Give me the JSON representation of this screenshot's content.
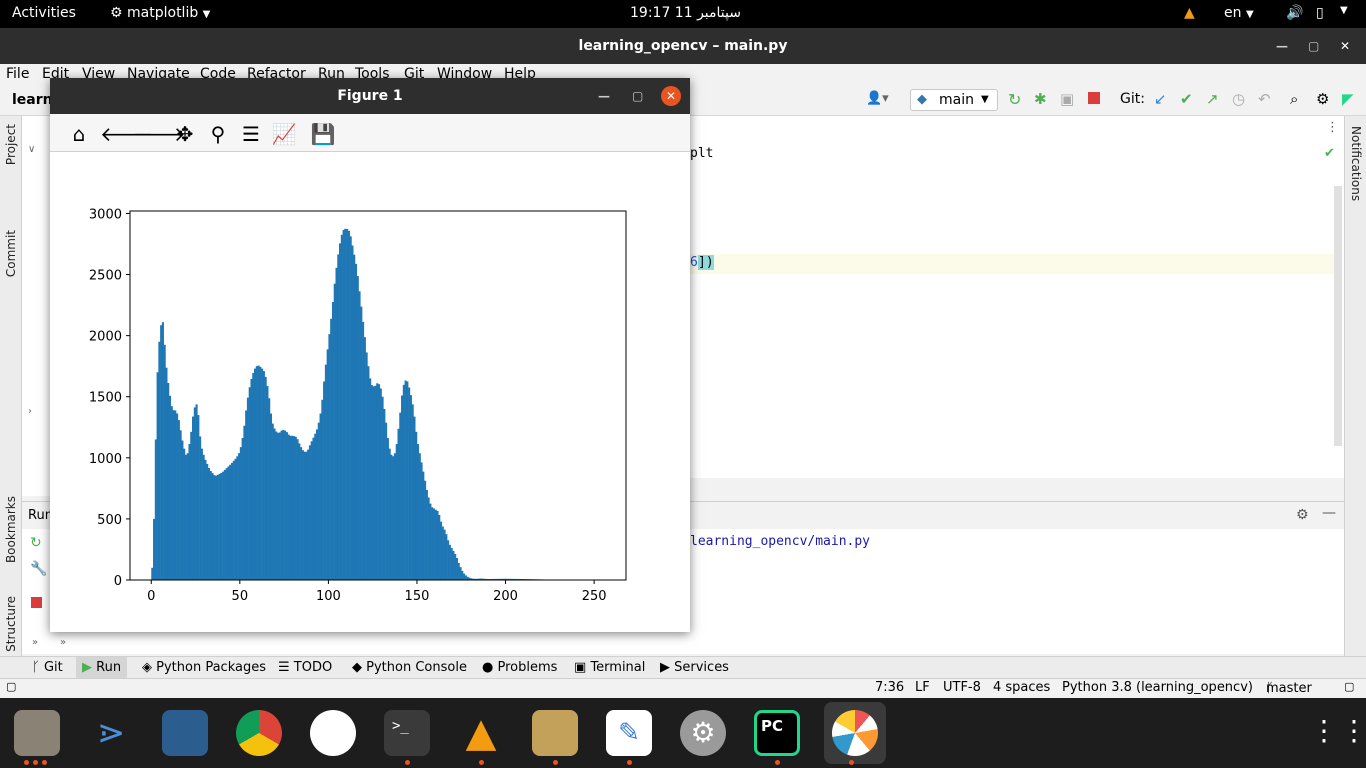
{
  "topbar": {
    "activities": "Activities",
    "app_name": "matplotlib",
    "clock": "19:17  11 سپتامبر",
    "lang": "en"
  },
  "ide": {
    "window_title": "learning_opencv – main.py",
    "menu": [
      "File",
      "Edit",
      "View",
      "Navigate",
      "Code",
      "Refactor",
      "Run",
      "Tools",
      "Git",
      "Window",
      "Help"
    ],
    "project_crumb": "learn",
    "run_config": "main",
    "git_label": "Git:",
    "editor_line1": "plt",
    "editor_line2_pre": "6",
    "editor_line2_post": "])",
    "run_label": "Run",
    "run_path": "learning_opencv/main.py",
    "left_tabs": [
      "Project",
      "Commit",
      "Bookmarks",
      "Structure"
    ],
    "right_tab": "Notifications",
    "tool_windows": [
      "Git",
      "Run",
      "Python Packages",
      "TODO",
      "Python Console",
      "Problems",
      "Terminal",
      "Services"
    ],
    "status": {
      "position": "7:36",
      "line_sep": "LF",
      "encoding": "UTF-8",
      "indent": "4 spaces",
      "interpreter": "Python 3.8 (learning_opencv)",
      "branch": "master"
    }
  },
  "figure": {
    "window_title": "Figure 1",
    "toolbar_icons": [
      "home-icon",
      "back-icon",
      "forward-icon",
      "pan-icon",
      "zoom-icon",
      "configure-icon",
      "edit-axes-icon",
      "save-icon"
    ]
  },
  "chart_data": {
    "type": "bar",
    "title": "",
    "xlabel": "",
    "ylabel": "",
    "xlim": [
      -12,
      268
    ],
    "ylim": [
      0,
      3020
    ],
    "xticks": [
      0,
      50,
      100,
      150,
      200,
      250
    ],
    "yticks": [
      0,
      500,
      1000,
      1500,
      2000,
      2500,
      3000
    ],
    "color": "#1f77b4",
    "keyframes_x": [
      0,
      1,
      2,
      3,
      4,
      5,
      6,
      7,
      8,
      10,
      12,
      13,
      15,
      18,
      20,
      22,
      24,
      26,
      27,
      28,
      30,
      33,
      36,
      40,
      45,
      48,
      50,
      52,
      54,
      56,
      58,
      60,
      62,
      64,
      66,
      68,
      70,
      72,
      74,
      76,
      78,
      80,
      82,
      84,
      86,
      88,
      90,
      92,
      94,
      96,
      98,
      100,
      102,
      104,
      106,
      108,
      110,
      112,
      114,
      116,
      118,
      120,
      122,
      124,
      126,
      128,
      130,
      132,
      134,
      136,
      138,
      140,
      142,
      144,
      146,
      148,
      150,
      152,
      154,
      156,
      158,
      160,
      162,
      164,
      166,
      168,
      170,
      172,
      174,
      176,
      178,
      180,
      182,
      184,
      186,
      188,
      190,
      200,
      210,
      220,
      226,
      230,
      240,
      255
    ],
    "keyframes_y": [
      0,
      200,
      800,
      1500,
      1900,
      2000,
      2170,
      2050,
      1800,
      1550,
      1380,
      1400,
      1350,
      1100,
      1000,
      1150,
      1400,
      1450,
      1250,
      1100,
      1000,
      900,
      850,
      880,
      950,
      1000,
      1050,
      1200,
      1450,
      1620,
      1720,
      1760,
      1740,
      1700,
      1550,
      1300,
      1220,
      1200,
      1230,
      1220,
      1180,
      1180,
      1170,
      1100,
      1050,
      1050,
      1120,
      1180,
      1250,
      1400,
      1700,
      1950,
      2200,
      2500,
      2720,
      2860,
      2880,
      2850,
      2700,
      2550,
      2300,
      2050,
      1800,
      1600,
      1580,
      1620,
      1550,
      1350,
      1100,
      1000,
      1050,
      1300,
      1580,
      1650,
      1550,
      1400,
      1150,
      1000,
      850,
      700,
      600,
      580,
      560,
      450,
      400,
      300,
      250,
      200,
      120,
      60,
      30,
      15,
      10,
      10,
      12,
      10,
      8,
      10,
      8,
      5,
      2,
      0,
      0,
      0
    ]
  }
}
